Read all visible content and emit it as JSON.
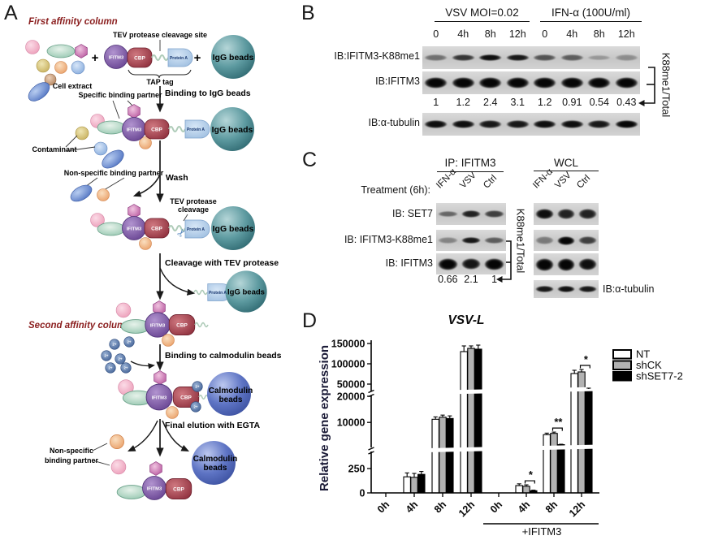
{
  "panels": {
    "a": "A",
    "b": "B",
    "c": "C",
    "d": "D"
  },
  "panel_a": {
    "section1_title": "First affinity column",
    "section2_title": "Second affinity column",
    "cell_extract": "Cell extract",
    "tev_site": "TEV protease cleavage site",
    "tap_tag": "TAP tag",
    "plus": "+",
    "ifitm3": "IFITM3",
    "cbp": "CBP",
    "protein_a": "Protein A",
    "igg_beads": "IgG beads",
    "binding_igg": "Binding to IgG beads",
    "specific_partner": "Specific binding partner",
    "contaminant": "Contaminant",
    "nonspecific_partner": "Non-specific binding partner",
    "wash": "Wash",
    "tev_cleavage_line1": "TEV protease",
    "tev_cleavage_line2": "cleavage",
    "cleavage_step": "Cleavage with TEV protease",
    "binding_calmodulin": "Binding to calmodulin beads",
    "calmodulin_line1": "Calmodulin",
    "calmodulin_line2": "beads",
    "final_elution": "Final elution with EGTA",
    "nonspecific2_line1": "Non-specific",
    "nonspecific2_line2": "binding partner",
    "ca_ion": "2+"
  },
  "panel_b": {
    "group1": "VSV MOI=0.02",
    "group2": "IFN-α (100U/ml)",
    "lanes": [
      "0",
      "4h",
      "8h",
      "12h",
      "0",
      "4h",
      "8h",
      "12h"
    ],
    "rows": [
      {
        "label": "IB:IFITM3-K88me1",
        "bands": [
          0.45,
          0.75,
          0.95,
          0.9,
          0.6,
          0.55,
          0.25,
          0.3
        ],
        "band_h": 9
      },
      {
        "label": "IB:IFITM3",
        "bands": [
          1,
          1,
          1,
          1,
          1,
          1,
          1,
          1
        ],
        "band_h": 14
      },
      {
        "label": "IB:α-tubulin",
        "bands": [
          0.95,
          0.95,
          0.9,
          0.9,
          0.95,
          0.95,
          0.9,
          1
        ],
        "band_h": 10
      }
    ],
    "ratios": [
      "1",
      "1.2",
      "2.4",
      "3.1",
      "1.2",
      "0.91",
      "0.54",
      "0.43"
    ],
    "ratio_label": "K88me1/Total"
  },
  "panel_c": {
    "group1": "IP: IFITM3",
    "group2": "WCL",
    "treatment": "Treatment (6h):",
    "lanes": [
      "IFN-α",
      "VSV",
      "Ctrl"
    ],
    "ip_rows": [
      {
        "label": "IB: SET7",
        "bands": [
          0.5,
          0.85,
          0.7
        ],
        "band_h": 9
      },
      {
        "label": "IB: IFITM3-K88me1",
        "bands": [
          0.35,
          0.9,
          0.55
        ],
        "band_h": 9
      },
      {
        "label": "IB: IFITM3",
        "bands": [
          1,
          0.92,
          1
        ],
        "band_h": 15
      }
    ],
    "wcl_rows": [
      {
        "bands": [
          0.95,
          0.85,
          0.85
        ],
        "band_h": 13
      },
      {
        "bands": [
          0.4,
          1,
          0.7
        ],
        "band_h": 11
      },
      {
        "bands": [
          1,
          1,
          0.95
        ],
        "band_h": 16
      },
      {
        "bands": [
          0.9,
          0.95,
          0.9
        ],
        "band_h": 9
      }
    ],
    "tubulin_label": "IB:α-tubulin",
    "ratios": [
      "0.66",
      "2.1",
      "1"
    ],
    "ratio_label": "K88me1/Total"
  },
  "chart_data": {
    "type": "bar",
    "title": "VSV-L",
    "ylabel": "Relative gene expression",
    "categories": [
      "0h",
      "4h",
      "8h",
      "12h",
      "0h",
      "4h",
      "8h",
      "12h"
    ],
    "group_annotation": {
      "label": "+IFITM3",
      "from": 4,
      "to": 7
    },
    "y_ticks": [
      0,
      250,
      10000,
      20000,
      50000,
      100000,
      150000
    ],
    "y_axis_breaks": 2,
    "legend": [
      "NT",
      "shCK",
      "shSET7-2"
    ],
    "legend_fills": [
      "#ffffff",
      "#b2b2b2",
      "#000000"
    ],
    "series": [
      {
        "name": "NT",
        "fill": "#ffffff",
        "values": [
          0,
          165,
          11200,
          130000,
          0,
          75,
          5300,
          76000
        ],
        "errors": [
          0,
          40,
          900,
          14000,
          0,
          18,
          600,
          8000
        ]
      },
      {
        "name": "shCK",
        "fill": "#b2b2b2",
        "values": [
          0,
          160,
          12000,
          138000,
          0,
          68,
          5800,
          80000
        ],
        "errors": [
          0,
          40,
          800,
          6000,
          0,
          15,
          500,
          6000
        ]
      },
      {
        "name": "shSET7-2",
        "fill": "#000000",
        "values": [
          0,
          190,
          11500,
          136000,
          0,
          22,
          1500,
          38000
        ],
        "errors": [
          0,
          30,
          1000,
          10000,
          0,
          6,
          150,
          2000
        ]
      }
    ],
    "significance": [
      {
        "group": 5,
        "label": "*"
      },
      {
        "group": 6,
        "label": "**"
      },
      {
        "group": 7,
        "label": "*"
      }
    ]
  }
}
